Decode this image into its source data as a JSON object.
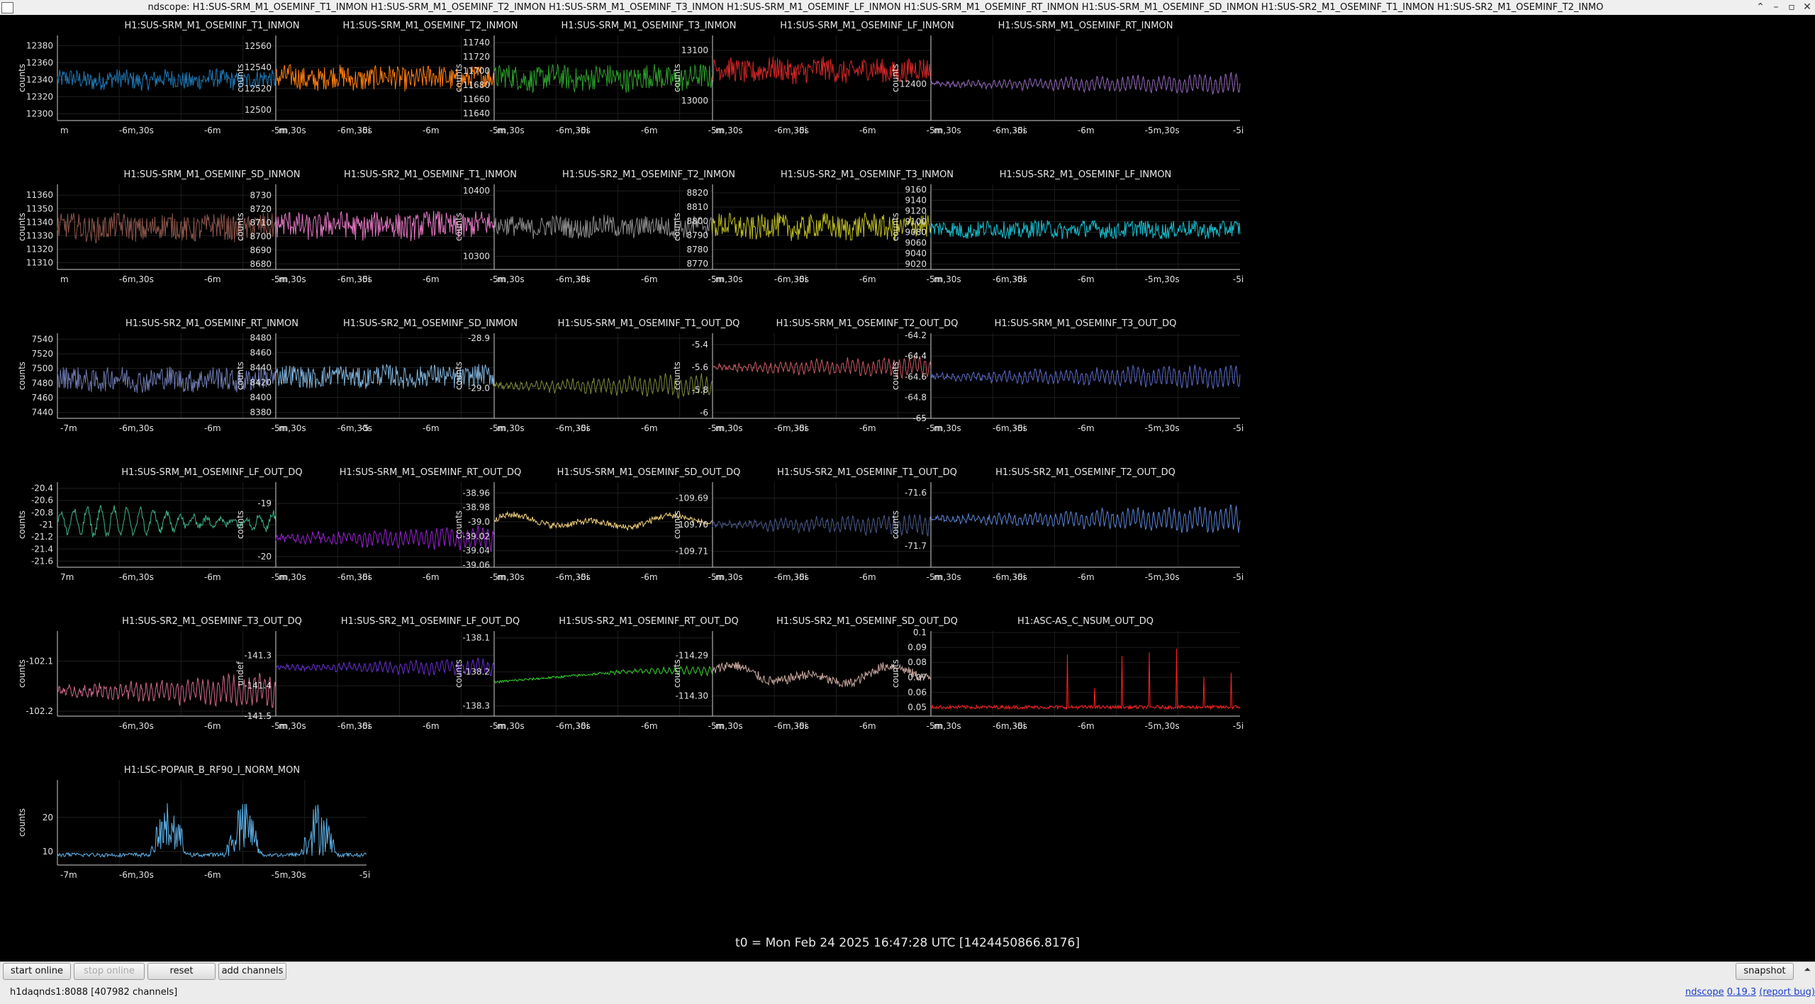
{
  "window": {
    "title": "ndscope: H1:SUS-SRM_M1_OSEMINF_T1_INMON H1:SUS-SRM_M1_OSEMINF_T2_INMON H1:SUS-SRM_M1_OSEMINF_T3_INMON H1:SUS-SRM_M1_OSEMINF_LF_INMON H1:SUS-SRM_M1_OSEMINF_RT_INMON H1:SUS-SRM_M1_OSEMINF_SD_INMON H1:SUS-SR2_M1_OSEMINF_T1_INMON H1:SUS-SR2_M1_OSEMINF_T2_INMO",
    "controls": [
      "⌃",
      "–",
      "▫",
      "✕"
    ]
  },
  "t0_label": "t0 = Mon Feb 24 2025 16:47:28 UTC [1424450866.8176]",
  "buttons": {
    "start_online": "start online",
    "stop_online": "stop online",
    "reset": "reset",
    "add_channels": "add channels",
    "snapshot": "snapshot"
  },
  "status": {
    "server": "h1daqnds1:8088",
    "channels": "[407982 channels]",
    "app_name": "ndscope",
    "version": "0.19.3",
    "report_bug": "(report bug)"
  },
  "chart_data": [
    {
      "type": "line",
      "title": "H1:SUS-SRM_M1_OSEMINF_T1_INMON",
      "ylabel": "counts",
      "color": "#1f77b4",
      "yticks": [
        "12380",
        "12360",
        "12340",
        "12320",
        "12300"
      ],
      "xticks": [
        "m",
        "-6m,30s",
        "-6m",
        "-5m,30s",
        "-5i"
      ],
      "ylim": [
        12292,
        12392
      ],
      "center": 12340,
      "amp": 14,
      "mode": "noise"
    },
    {
      "type": "line",
      "title": "H1:SUS-SRM_M1_OSEMINF_T2_INMON",
      "ylabel": "counts",
      "color": "#ff7f0e",
      "yticks": [
        "12560",
        "12540",
        "12520",
        "12500"
      ],
      "xticks": [
        "m",
        "-6m,30s",
        "-6m",
        "-5m,30s",
        "-5i"
      ],
      "ylim": [
        12490,
        12570
      ],
      "center": 12530,
      "amp": 14,
      "mode": "noise"
    },
    {
      "type": "line",
      "title": "H1:SUS-SRM_M1_OSEMINF_T3_INMON",
      "ylabel": "counts",
      "color": "#2ca02c",
      "yticks": [
        "11740",
        "11720",
        "11700",
        "11680",
        "11660",
        "11640"
      ],
      "xticks": [
        "m",
        "-6m,30s",
        "-6m",
        "-5m,30s",
        "-5i"
      ],
      "ylim": [
        11630,
        11750
      ],
      "center": 11690,
      "amp": 22,
      "mode": "noise"
    },
    {
      "type": "line",
      "title": "H1:SUS-SRM_M1_OSEMINF_LF_INMON",
      "ylabel": "counts",
      "color": "#d62728",
      "yticks": [
        "13100",
        "13000"
      ],
      "xticks": [
        "m",
        "-6m,30s",
        "-6m",
        "-5m,30s",
        "-5i"
      ],
      "ylim": [
        12960,
        13130
      ],
      "center": 13060,
      "amp": 30,
      "mode": "noise"
    },
    {
      "type": "line",
      "title": "H1:SUS-SRM_M1_OSEMINF_RT_INMON",
      "ylabel": "counts",
      "color": "#9467bd",
      "yticks": [
        "12400"
      ],
      "xticks": [
        "m",
        "-6m,30s",
        "-6m",
        "-5m,30s",
        "-5i"
      ],
      "ylim": [
        12370,
        12440
      ],
      "center": 12400,
      "amp": 10,
      "mode": "grow"
    },
    {
      "type": "line",
      "title": "H1:SUS-SRM_M1_OSEMINF_SD_INMON",
      "ylabel": "counts",
      "color": "#8c564b",
      "yticks": [
        "11360",
        "11350",
        "11340",
        "11330",
        "11320",
        "11310"
      ],
      "xticks": [
        "m",
        "-6m,30s",
        "-6m",
        "-5m,30s",
        "-5i"
      ],
      "ylim": [
        11305,
        11368
      ],
      "center": 11336,
      "amp": 12,
      "mode": "noise"
    },
    {
      "type": "line",
      "title": "H1:SUS-SR2_M1_OSEMINF_T1_INMON",
      "ylabel": "counts",
      "color": "#e377c2",
      "yticks": [
        "8730",
        "8720",
        "8710",
        "8700",
        "8690",
        "8680"
      ],
      "xticks": [
        "m",
        "-6m,30s",
        "-6m",
        "-5m,30s",
        "-5i"
      ],
      "ylim": [
        8676,
        8738
      ],
      "center": 8708,
      "amp": 12,
      "mode": "noise"
    },
    {
      "type": "line",
      "title": "H1:SUS-SR2_M1_OSEMINF_T2_INMON",
      "ylabel": "counts",
      "color": "#8c8c8c",
      "yticks": [
        "10400",
        "10300"
      ],
      "xticks": [
        "m",
        "-6m,30s",
        "-6m",
        "-5m,30s",
        "-5i"
      ],
      "ylim": [
        10280,
        10410
      ],
      "center": 10345,
      "amp": 20,
      "mode": "noise"
    },
    {
      "type": "line",
      "title": "H1:SUS-SR2_M1_OSEMINF_T3_INMON",
      "ylabel": "counts",
      "color": "#bcbd22",
      "yticks": [
        "8820",
        "8810",
        "8800",
        "8790",
        "8780",
        "8770"
      ],
      "xticks": [
        "m",
        "-6m,30s",
        "-6m",
        "-5m,30s",
        "-5i"
      ],
      "ylim": [
        8766,
        8826
      ],
      "center": 8796,
      "amp": 11,
      "mode": "noise"
    },
    {
      "type": "line",
      "title": "H1:SUS-SR2_M1_OSEMINF_LF_INMON",
      "ylabel": "counts",
      "color": "#17becf",
      "yticks": [
        "9160",
        "9140",
        "9120",
        "9100",
        "9080",
        "9060",
        "9040",
        "9020"
      ],
      "xticks": [
        "m",
        "-6m,30s",
        "-6m",
        "-5m,30s",
        "-5i"
      ],
      "ylim": [
        9010,
        9170
      ],
      "center": 9085,
      "amp": 20,
      "mode": "noise"
    },
    {
      "type": "line",
      "title": "H1:SUS-SR2_M1_OSEMINF_RT_INMON",
      "ylabel": "counts",
      "color": "#6e7ab0",
      "yticks": [
        "7540",
        "7520",
        "7500",
        "7480",
        "7460",
        "7440"
      ],
      "xticks": [
        "-7m",
        "-6m,30s",
        "-6m",
        "-5m,30s",
        "-5"
      ],
      "ylim": [
        7432,
        7548
      ],
      "center": 7485,
      "amp": 20,
      "mode": "noise"
    },
    {
      "type": "line",
      "title": "H1:SUS-SR2_M1_OSEMINF_SD_INMON",
      "ylabel": "counts",
      "color": "#7fb2d9",
      "yticks": [
        "8480",
        "8460",
        "8440",
        "8420",
        "8400",
        "8380"
      ],
      "xticks": [
        "m",
        "-6m,30s",
        "-6m",
        "-5m,30s",
        "-5i"
      ],
      "ylim": [
        8372,
        8486
      ],
      "center": 8428,
      "amp": 18,
      "mode": "noise"
    },
    {
      "type": "line",
      "title": "H1:SUS-SRM_M1_OSEMINF_T1_OUT_DQ",
      "ylabel": "counts",
      "color": "#7f8a3a",
      "yticks": [
        "-28.9",
        "-29.0"
      ],
      "xticks": [
        "m",
        "-6m,30s",
        "-6m",
        "-5m,30s",
        "-5i"
      ],
      "ylim": [
        -29.06,
        -28.89
      ],
      "center": -28.995,
      "amp": 0.035,
      "mode": "grow"
    },
    {
      "type": "line",
      "title": "H1:SUS-SRM_M1_OSEMINF_T2_OUT_DQ",
      "ylabel": "counts",
      "color": "#c95a63",
      "yticks": [
        "-5.4",
        "-5.6",
        "-5.8",
        "-6"
      ],
      "xticks": [
        "m",
        "-6m,30s",
        "-6m",
        "-5m,30s",
        "-5i"
      ],
      "ylim": [
        -6.05,
        -5.3
      ],
      "center": -5.6,
      "amp": 0.14,
      "mode": "grow"
    },
    {
      "type": "line",
      "title": "H1:SUS-SRM_M1_OSEMINF_T3_OUT_DQ",
      "ylabel": "counts",
      "color": "#5b6bc9",
      "yticks": [
        "-64.2",
        "-64.4",
        "-64.6",
        "-64.8",
        "-65"
      ],
      "xticks": [
        "m",
        "-6m,30s",
        "-6m",
        "-5m,30s",
        "-5i"
      ],
      "ylim": [
        -65.0,
        -64.18
      ],
      "center": -64.6,
      "amp": 0.14,
      "mode": "grow"
    },
    {
      "type": "line",
      "title": "H1:SUS-SRM_M1_OSEMINF_LF_OUT_DQ",
      "ylabel": "counts",
      "color": "#3fb58a",
      "yticks": [
        "-20.4",
        "-20.6",
        "-20.8",
        "-21",
        "-21.2",
        "-21.4",
        "-21.6"
      ],
      "xticks": [
        "7m",
        "-6m,30s",
        "-6m",
        "-5m,30s",
        "-5i"
      ],
      "ylim": [
        -21.7,
        -20.3
      ],
      "center": -20.95,
      "amp": 0.3,
      "mode": "ring"
    },
    {
      "type": "line",
      "title": "H1:SUS-SRM_M1_OSEMINF_RT_OUT_DQ",
      "ylabel": "counts",
      "color": "#9a22d6",
      "yticks": [
        "-19",
        "-20"
      ],
      "xticks": [
        "m",
        "-6m,30s",
        "-6m",
        "-5m,30s",
        "-5i"
      ],
      "ylim": [
        -20.2,
        -18.6
      ],
      "center": -19.65,
      "amp": 0.35,
      "mode": "grow"
    },
    {
      "type": "line",
      "title": "H1:SUS-SRM_M1_OSEMINF_SD_OUT_DQ",
      "ylabel": "counts",
      "color": "#f2d07a",
      "yticks": [
        "-38.96",
        "-38.98",
        "-39.0",
        "-39.02",
        "-39.04",
        "-39.06"
      ],
      "xticks": [
        "m",
        "-6m,30s",
        "-6m",
        "-5m,30s",
        "-5i"
      ],
      "ylim": [
        -39.063,
        -38.945
      ],
      "center": -39.0,
      "amp": 0.015,
      "mode": "wander"
    },
    {
      "type": "line",
      "title": "H1:SUS-SR2_M1_OSEMINF_T1_OUT_DQ",
      "ylabel": "counts",
      "color": "#4a5a8c",
      "yticks": [
        "-109.69",
        "-109.70",
        "-109.71"
      ],
      "xticks": [
        "m",
        "-6m,30s",
        "-6m",
        "-5m,30s",
        "-5i"
      ],
      "ylim": [
        -109.716,
        -109.684
      ],
      "center": -109.7,
      "amp": 0.006,
      "mode": "grow"
    },
    {
      "type": "line",
      "title": "H1:SUS-SR2_M1_OSEMINF_T2_OUT_DQ",
      "ylabel": "counts",
      "color": "#5c86d8",
      "yticks": [
        "-71.6",
        "-71.7"
      ],
      "xticks": [
        "m",
        "-6m,30s",
        "-6m",
        "-5m,30s",
        "-5i"
      ],
      "ylim": [
        -71.74,
        -71.58
      ],
      "center": -71.65,
      "amp": 0.03,
      "mode": "grow"
    },
    {
      "type": "line",
      "title": "H1:SUS-SR2_M1_OSEMINF_T3_OUT_DQ",
      "ylabel": "counts",
      "color": "#d2698f",
      "yticks": [
        "-102.1",
        "-102.2"
      ],
      "xticks": [
        "",
        "-6m,30s",
        "-6m",
        "-5m,30s",
        "-5i"
      ],
      "ylim": [
        -102.21,
        -102.04
      ],
      "center": -102.16,
      "amp": 0.05,
      "mode": "grow"
    },
    {
      "type": "line",
      "title": "H1:SUS-SR2_M1_OSEMINF_LF_OUT_DQ",
      "ylabel": "undef",
      "color": "#6a2fd6",
      "yticks": [
        "-141.3",
        "-141.4",
        "-141.5"
      ],
      "xticks": [
        "m",
        "-6m,30s",
        "-6m",
        "-5m,30s",
        "-5i"
      ],
      "ylim": [
        -141.5,
        -141.22
      ],
      "center": -141.34,
      "amp": 0.04,
      "mode": "grow"
    },
    {
      "type": "line",
      "title": "H1:SUS-SR2_M1_OSEMINF_RT_OUT_DQ",
      "ylabel": "counts",
      "color": "#36d12e",
      "yticks": [
        "-138.1",
        "-138.2",
        "-138.3"
      ],
      "xticks": [
        "m",
        "-6m,30s",
        "-6m",
        "-5m,30s",
        "-5i"
      ],
      "ylim": [
        -138.33,
        -138.08
      ],
      "center": -138.2,
      "amp": 0.03,
      "mode": "rise"
    },
    {
      "type": "line",
      "title": "H1:SUS-SR2_M1_OSEMINF_SD_OUT_DQ",
      "ylabel": "counts",
      "color": "#c9a8a0",
      "yticks": [
        "-114.29",
        "-114.30"
      ],
      "xticks": [
        "m",
        "-6m,30s",
        "-6m",
        "-5m,30s",
        "-5i"
      ],
      "ylim": [
        -114.305,
        -114.284
      ],
      "center": -114.295,
      "amp": 0.004,
      "mode": "wander"
    },
    {
      "type": "line",
      "title": "H1:ASC-AS_C_NSUM_OUT_DQ",
      "ylabel": "counts",
      "color": "#ff2020",
      "yticks": [
        "0.1",
        "0.09",
        "0.08",
        "0.07",
        "0.06",
        "0.05"
      ],
      "xticks": [
        "m",
        "-6m,30s",
        "-6m",
        "-5m,30s",
        "-5i"
      ],
      "ylim": [
        0.044,
        0.101
      ],
      "center": 0.05,
      "amp": 0.002,
      "mode": "spikes"
    },
    {
      "type": "line",
      "title": "H1:LSC-POPAIR_B_RF90_I_NORM_MON",
      "ylabel": "counts",
      "color": "#5fb2e8",
      "yticks": [
        "20",
        "10"
      ],
      "xticks": [
        "-7m",
        "-6m,30s",
        "-6m",
        "-5m,30s",
        "-5i"
      ],
      "ylim": [
        6,
        31
      ],
      "center": 9,
      "amp": 1,
      "mode": "bursts"
    }
  ]
}
